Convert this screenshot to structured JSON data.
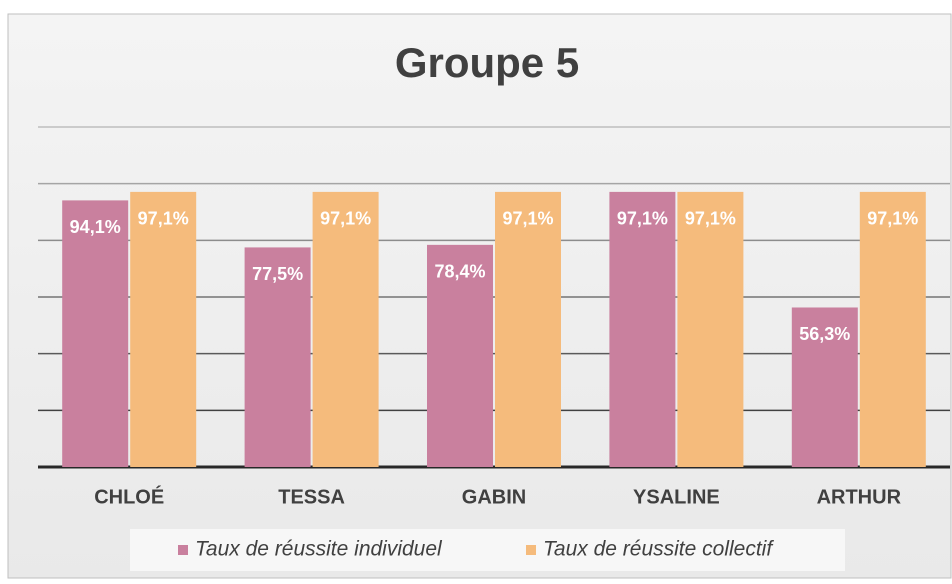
{
  "chart_data": {
    "type": "bar",
    "title": "Groupe 5",
    "categories": [
      "CHLOÉ",
      "TESSA",
      "GABIN",
      "YSALINE",
      "ARTHUR"
    ],
    "series": [
      {
        "name": "Taux de réussite individuel",
        "color": "#c9809e",
        "values": [
          94.1,
          77.5,
          78.4,
          97.1,
          56.3
        ],
        "value_labels": [
          "94,1%",
          "77,5%",
          "78,4%",
          "97,1%",
          "56,3%"
        ]
      },
      {
        "name": "Taux de réussite collectif",
        "color": "#f5bb7c",
        "values": [
          97.1,
          97.1,
          97.1,
          97.1,
          97.1
        ],
        "value_labels": [
          "97,1%",
          "97,1%",
          "97,1%",
          "97,1%",
          "97,1%"
        ]
      }
    ],
    "ylim": [
      0,
      120
    ],
    "yticks": [
      0,
      20,
      40,
      60,
      80,
      100,
      120
    ],
    "grid": true,
    "legend": "bottom"
  }
}
